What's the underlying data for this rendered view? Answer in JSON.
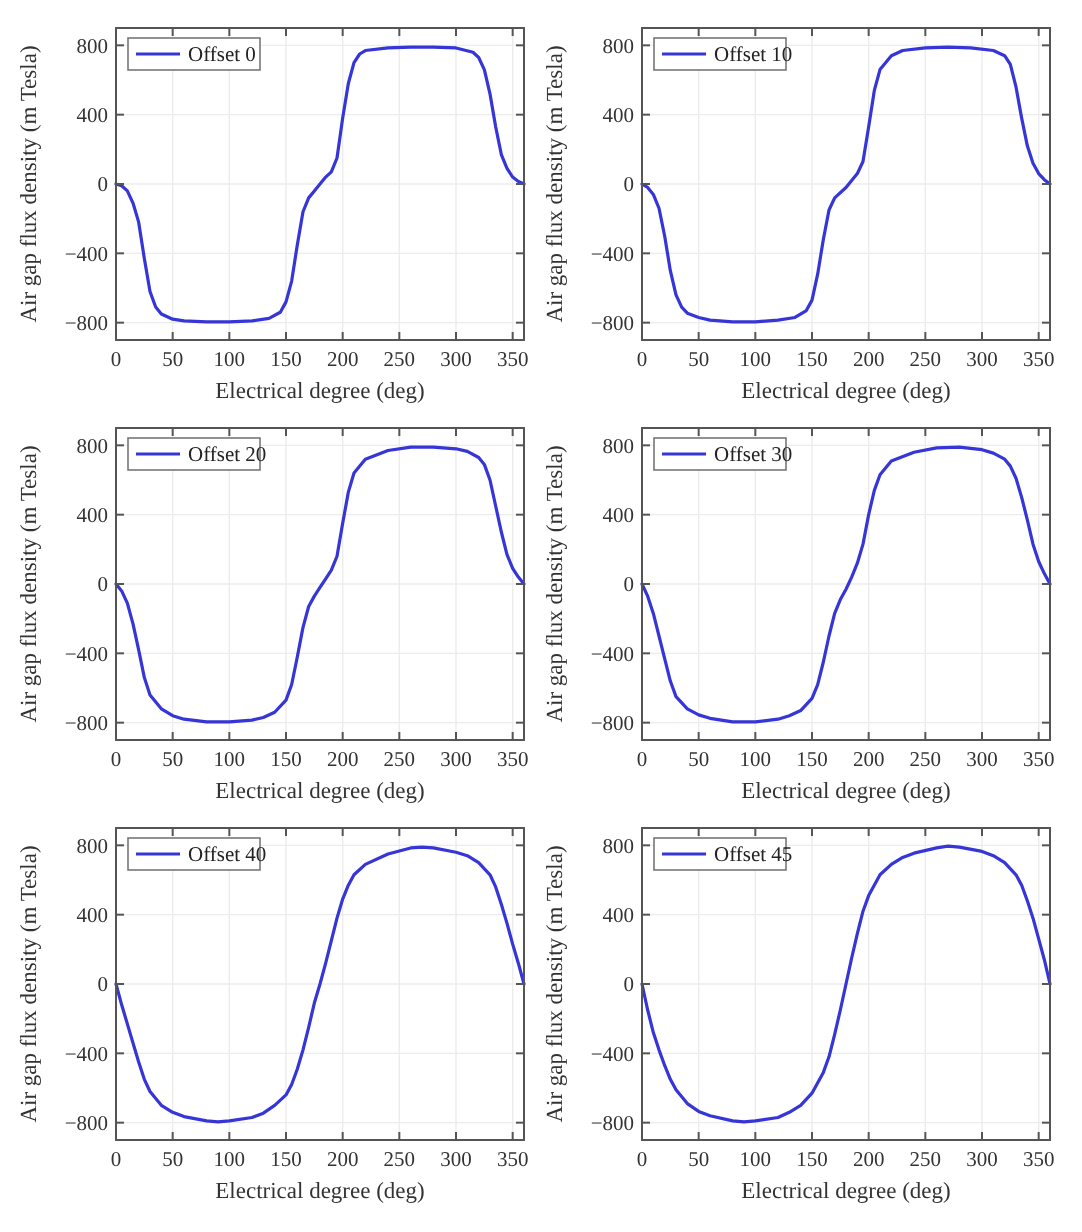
{
  "chart_data": [
    {
      "type": "line",
      "xlabel": "Electrical degree (deg)",
      "ylabel": "Air gap flux density (m Tesla)",
      "xlim": [
        0,
        360
      ],
      "xticks": [
        0,
        50,
        100,
        150,
        200,
        250,
        300,
        350
      ],
      "ylim": [
        -900,
        900
      ],
      "yticks": [
        -800,
        -400,
        0,
        400,
        800
      ],
      "grid": true,
      "legend": "top left",
      "x": [
        0,
        5,
        10,
        15,
        20,
        25,
        30,
        35,
        40,
        50,
        60,
        80,
        100,
        120,
        135,
        145,
        150,
        155,
        160,
        165,
        170,
        175,
        180,
        185,
        190,
        195,
        200,
        205,
        210,
        215,
        220,
        240,
        260,
        280,
        300,
        315,
        320,
        325,
        330,
        335,
        340,
        345,
        350,
        355,
        360
      ],
      "series": [
        {
          "name": "Offset 0",
          "color": "#3535d8",
          "values": [
            0,
            -10,
            -40,
            -110,
            -220,
            -430,
            -620,
            -710,
            -750,
            -780,
            -790,
            -795,
            -795,
            -790,
            -775,
            -740,
            -680,
            -560,
            -350,
            -160,
            -80,
            -40,
            0,
            40,
            70,
            150,
            380,
            580,
            700,
            750,
            770,
            785,
            790,
            790,
            785,
            760,
            730,
            660,
            520,
            330,
            170,
            90,
            40,
            15,
            0
          ]
        }
      ]
    },
    {
      "type": "line",
      "xlabel": "Electrical degree (deg)",
      "ylabel": "Air gap flux density (m Tesla)",
      "xlim": [
        0,
        360
      ],
      "xticks": [
        0,
        50,
        100,
        150,
        200,
        250,
        300,
        350
      ],
      "ylim": [
        -900,
        900
      ],
      "yticks": [
        -800,
        -400,
        0,
        400,
        800
      ],
      "grid": true,
      "legend": "top left",
      "x": [
        0,
        5,
        10,
        15,
        20,
        25,
        30,
        35,
        40,
        50,
        60,
        80,
        100,
        120,
        135,
        145,
        150,
        155,
        160,
        165,
        170,
        180,
        185,
        190,
        195,
        200,
        205,
        210,
        220,
        230,
        250,
        270,
        290,
        310,
        320,
        325,
        330,
        335,
        340,
        345,
        350,
        355,
        360
      ],
      "series": [
        {
          "name": "Offset 10",
          "color": "#3535d8",
          "values": [
            0,
            -20,
            -60,
            -140,
            -300,
            -500,
            -640,
            -710,
            -745,
            -770,
            -785,
            -795,
            -795,
            -785,
            -770,
            -730,
            -670,
            -520,
            -320,
            -150,
            -80,
            -20,
            20,
            60,
            130,
            330,
            540,
            660,
            740,
            770,
            785,
            790,
            785,
            770,
            740,
            690,
            560,
            380,
            220,
            120,
            60,
            25,
            0
          ]
        }
      ]
    },
    {
      "type": "line",
      "xlabel": "Electrical degree (deg)",
      "ylabel": "Air gap flux density (m Tesla)",
      "xlim": [
        0,
        360
      ],
      "xticks": [
        0,
        50,
        100,
        150,
        200,
        250,
        300,
        350
      ],
      "ylim": [
        -900,
        900
      ],
      "yticks": [
        -800,
        -400,
        0,
        400,
        800
      ],
      "grid": true,
      "legend": "top left",
      "x": [
        0,
        5,
        10,
        15,
        20,
        25,
        30,
        40,
        50,
        60,
        80,
        100,
        120,
        130,
        140,
        150,
        155,
        160,
        165,
        170,
        175,
        180,
        185,
        190,
        195,
        200,
        205,
        210,
        220,
        240,
        260,
        280,
        300,
        310,
        320,
        325,
        330,
        335,
        340,
        345,
        350,
        355,
        360
      ],
      "series": [
        {
          "name": "Offset 20",
          "color": "#3535d8",
          "values": [
            0,
            -40,
            -110,
            -230,
            -380,
            -540,
            -640,
            -720,
            -760,
            -780,
            -795,
            -795,
            -785,
            -770,
            -740,
            -670,
            -580,
            -420,
            -250,
            -130,
            -70,
            -20,
            30,
            80,
            160,
            350,
            530,
            640,
            720,
            770,
            790,
            790,
            780,
            765,
            730,
            690,
            600,
            450,
            300,
            170,
            90,
            40,
            0
          ]
        }
      ]
    },
    {
      "type": "line",
      "xlabel": "Electrical degree (deg)",
      "ylabel": "Air gap flux density (m Tesla)",
      "xlim": [
        0,
        360
      ],
      "xticks": [
        0,
        50,
        100,
        150,
        200,
        250,
        300,
        350
      ],
      "ylim": [
        -900,
        900
      ],
      "yticks": [
        -800,
        -400,
        0,
        400,
        800
      ],
      "grid": true,
      "legend": "top left",
      "x": [
        0,
        5,
        10,
        15,
        20,
        25,
        30,
        40,
        50,
        60,
        80,
        100,
        120,
        130,
        140,
        150,
        155,
        160,
        165,
        170,
        175,
        180,
        185,
        190,
        195,
        200,
        205,
        210,
        220,
        240,
        260,
        280,
        300,
        310,
        320,
        325,
        330,
        335,
        340,
        345,
        350,
        355,
        360
      ],
      "series": [
        {
          "name": "Offset 30",
          "color": "#3535d8",
          "values": [
            0,
            -70,
            -170,
            -300,
            -430,
            -560,
            -650,
            -720,
            -755,
            -775,
            -795,
            -795,
            -780,
            -760,
            -730,
            -660,
            -580,
            -450,
            -300,
            -170,
            -90,
            -30,
            40,
            120,
            230,
            400,
            540,
            630,
            710,
            760,
            785,
            790,
            775,
            755,
            720,
            680,
            610,
            500,
            370,
            230,
            130,
            60,
            0
          ]
        }
      ]
    },
    {
      "type": "line",
      "xlabel": "Electrical degree (deg)",
      "ylabel": "Air gap flux density (m Tesla)",
      "xlim": [
        0,
        360
      ],
      "xticks": [
        0,
        50,
        100,
        150,
        200,
        250,
        300,
        350
      ],
      "ylim": [
        -900,
        900
      ],
      "yticks": [
        -800,
        -400,
        0,
        400,
        800
      ],
      "grid": true,
      "legend": "top left",
      "x": [
        0,
        5,
        10,
        15,
        20,
        25,
        30,
        40,
        50,
        60,
        80,
        90,
        100,
        120,
        130,
        140,
        150,
        155,
        160,
        165,
        170,
        175,
        180,
        185,
        190,
        195,
        200,
        205,
        210,
        220,
        240,
        260,
        270,
        280,
        300,
        310,
        320,
        330,
        335,
        340,
        345,
        350,
        355,
        360
      ],
      "series": [
        {
          "name": "Offset 40",
          "color": "#3535d8",
          "values": [
            0,
            -120,
            -230,
            -340,
            -450,
            -550,
            -620,
            -700,
            -740,
            -765,
            -790,
            -795,
            -790,
            -770,
            -745,
            -700,
            -640,
            -580,
            -490,
            -380,
            -250,
            -110,
            0,
            120,
            250,
            380,
            490,
            570,
            630,
            690,
            750,
            785,
            790,
            785,
            760,
            740,
            700,
            630,
            560,
            460,
            350,
            230,
            120,
            0
          ]
        }
      ]
    },
    {
      "type": "line",
      "xlabel": "Electrical degree (deg)",
      "ylabel": "Air gap flux density (m Tesla)",
      "xlim": [
        0,
        360
      ],
      "xticks": [
        0,
        50,
        100,
        150,
        200,
        250,
        300,
        350
      ],
      "ylim": [
        -900,
        900
      ],
      "yticks": [
        -800,
        -400,
        0,
        400,
        800
      ],
      "grid": true,
      "legend": "top left",
      "x": [
        0,
        5,
        10,
        15,
        20,
        25,
        30,
        40,
        50,
        60,
        80,
        90,
        100,
        120,
        130,
        140,
        150,
        160,
        165,
        170,
        175,
        180,
        185,
        190,
        195,
        200,
        210,
        220,
        230,
        240,
        260,
        270,
        280,
        300,
        310,
        320,
        330,
        335,
        340,
        345,
        350,
        355,
        360
      ],
      "series": [
        {
          "name": "Offset 45",
          "color": "#3535d8",
          "values": [
            0,
            -150,
            -280,
            -380,
            -470,
            -550,
            -610,
            -690,
            -735,
            -760,
            -790,
            -795,
            -790,
            -770,
            -740,
            -700,
            -630,
            -510,
            -420,
            -290,
            -150,
            0,
            150,
            290,
            420,
            510,
            630,
            690,
            730,
            755,
            785,
            795,
            790,
            765,
            740,
            700,
            630,
            570,
            480,
            380,
            260,
            140,
            0
          ]
        }
      ]
    }
  ]
}
